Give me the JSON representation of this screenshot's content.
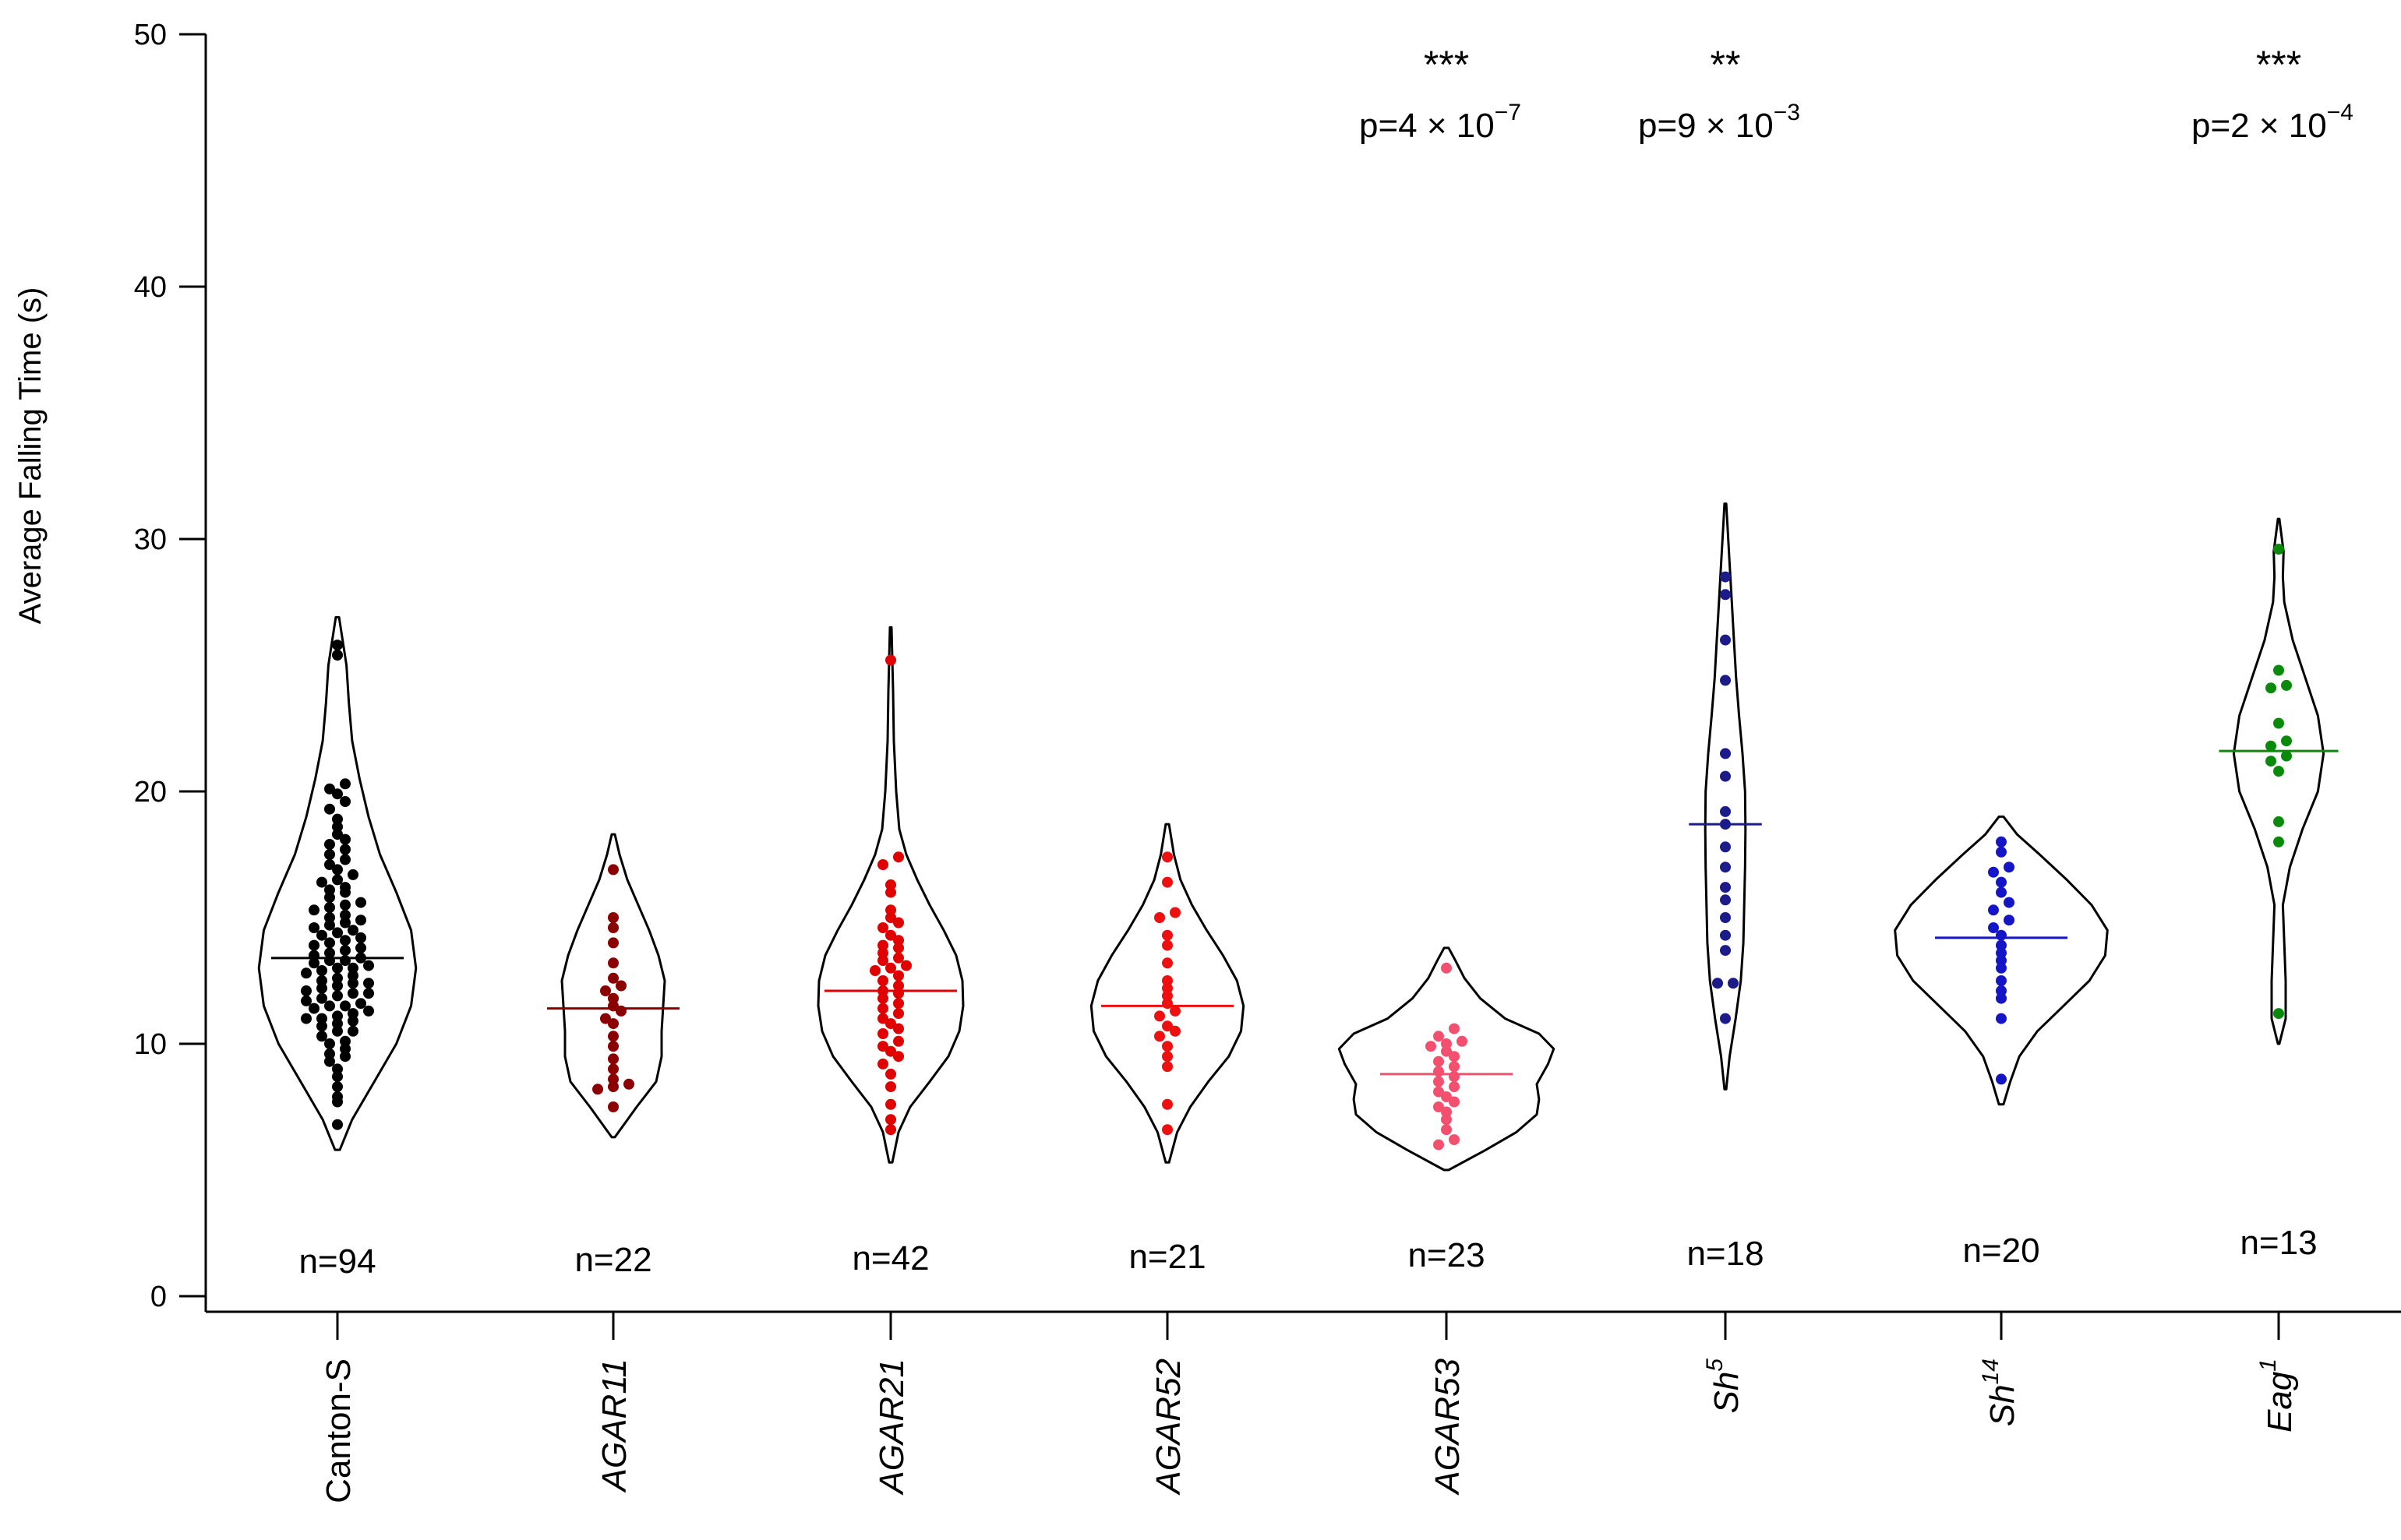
{
  "chart_data": {
    "type": "violin",
    "title": "",
    "ylabel": "Average Falling Time (s)",
    "xlabel": "",
    "ylim": [
      0,
      50
    ],
    "yticks": [
      "0",
      "10",
      "20",
      "30",
      "40",
      "50"
    ],
    "grid": false,
    "legend": "none",
    "groups": [
      {
        "name": "Canton-S",
        "italic": false,
        "sup": "",
        "color": "#000000",
        "n_label": "n=94",
        "median": 13.4,
        "range": [
          5.8,
          26.9
        ],
        "violin_profile": [
          [
            5.8,
            0.03
          ],
          [
            7,
            0.18
          ],
          [
            8.5,
            0.45
          ],
          [
            10,
            0.72
          ],
          [
            11.5,
            0.9
          ],
          [
            13,
            0.96
          ],
          [
            14.5,
            0.9
          ],
          [
            16,
            0.72
          ],
          [
            17.5,
            0.52
          ],
          [
            19,
            0.38
          ],
          [
            20.5,
            0.27
          ],
          [
            22,
            0.18
          ],
          [
            23.5,
            0.14
          ],
          [
            25,
            0.11
          ],
          [
            26.9,
            0.02
          ]
        ],
        "significance": "",
        "p_base": "",
        "p_exp": "",
        "values": [
          6.8,
          7.7,
          7.9,
          8.3,
          8.7,
          9.0,
          9.3,
          9.5,
          9.6,
          9.8,
          10.0,
          10.1,
          10.3,
          10.5,
          10.5,
          10.7,
          10.8,
          10.9,
          11.0,
          11.0,
          11.1,
          11.2,
          11.3,
          11.4,
          11.5,
          11.5,
          11.6,
          11.7,
          11.8,
          11.9,
          12.0,
          12.0,
          12.1,
          12.2,
          12.3,
          12.4,
          12.4,
          12.5,
          12.6,
          12.7,
          12.8,
          12.9,
          13.0,
          13.0,
          13.1,
          13.2,
          13.3,
          13.3,
          13.4,
          13.5,
          13.6,
          13.7,
          13.8,
          13.9,
          14.0,
          14.1,
          14.2,
          14.3,
          14.4,
          14.5,
          14.6,
          14.7,
          14.8,
          14.9,
          15.0,
          15.1,
          15.3,
          15.4,
          15.5,
          15.6,
          15.8,
          16.0,
          16.1,
          16.2,
          16.4,
          16.5,
          16.7,
          16.9,
          17.1,
          17.3,
          17.5,
          17.7,
          17.9,
          18.1,
          18.3,
          18.6,
          18.9,
          19.3,
          19.6,
          19.9,
          20.1,
          20.3,
          25.4,
          25.8
        ]
      },
      {
        "name": "AGAR11",
        "italic": true,
        "sup": "",
        "color": "#8b0000",
        "n_label": "n=22",
        "median": 11.4,
        "range": [
          6.3,
          18.3
        ],
        "violin_profile": [
          [
            6.3,
            0.02
          ],
          [
            7.5,
            0.3
          ],
          [
            8.5,
            0.55
          ],
          [
            9.5,
            0.62
          ],
          [
            10.5,
            0.62
          ],
          [
            11.5,
            0.64
          ],
          [
            12.5,
            0.66
          ],
          [
            13.5,
            0.58
          ],
          [
            14.5,
            0.46
          ],
          [
            15.5,
            0.32
          ],
          [
            16.5,
            0.18
          ],
          [
            17.5,
            0.08
          ],
          [
            18.3,
            0.02
          ]
        ],
        "significance": "",
        "p_base": "",
        "p_exp": "",
        "values": [
          7.5,
          8.2,
          8.3,
          8.4,
          8.6,
          9.0,
          9.4,
          9.9,
          10.3,
          10.8,
          11.0,
          11.3,
          11.5,
          11.8,
          12.1,
          12.3,
          12.6,
          13.2,
          14.0,
          14.6,
          15.0,
          16.9
        ]
      },
      {
        "name": "AGAR21",
        "italic": true,
        "sup": "",
        "color": "#e00000",
        "n_label": "n=42",
        "median": 12.1,
        "range": [
          5.3,
          26.5
        ],
        "violin_profile": [
          [
            5.3,
            0.02
          ],
          [
            6.5,
            0.1
          ],
          [
            7.5,
            0.25
          ],
          [
            8.5,
            0.5
          ],
          [
            9.5,
            0.74
          ],
          [
            10.5,
            0.88
          ],
          [
            11.5,
            0.93
          ],
          [
            12.5,
            0.92
          ],
          [
            13.5,
            0.84
          ],
          [
            14.5,
            0.68
          ],
          [
            15.5,
            0.5
          ],
          [
            16.5,
            0.34
          ],
          [
            17.5,
            0.2
          ],
          [
            18.5,
            0.11
          ],
          [
            20,
            0.07
          ],
          [
            22,
            0.04
          ],
          [
            24,
            0.03
          ],
          [
            26.5,
            0.01
          ]
        ],
        "significance": "",
        "p_base": "",
        "p_exp": "",
        "values": [
          6.6,
          7.0,
          7.6,
          8.3,
          8.8,
          9.2,
          9.5,
          9.7,
          9.9,
          10.1,
          10.4,
          10.6,
          10.8,
          11.0,
          11.2,
          11.4,
          11.6,
          11.8,
          12.0,
          12.1,
          12.3,
          12.5,
          12.7,
          12.9,
          13.0,
          13.1,
          13.3,
          13.4,
          13.6,
          13.8,
          13.9,
          14.1,
          14.3,
          14.6,
          14.8,
          15.0,
          15.3,
          16.0,
          16.3,
          17.1,
          17.4,
          25.2
        ]
      },
      {
        "name": "AGAR52",
        "italic": true,
        "sup": "",
        "color": "#ee1010",
        "n_label": "n=21",
        "median": 11.5,
        "range": [
          5.3,
          18.7
        ],
        "violin_profile": [
          [
            5.3,
            0.02
          ],
          [
            6.5,
            0.12
          ],
          [
            7.5,
            0.28
          ],
          [
            8.5,
            0.5
          ],
          [
            9.5,
            0.75
          ],
          [
            10.5,
            0.9
          ],
          [
            11.5,
            0.93
          ],
          [
            12.5,
            0.85
          ],
          [
            13.5,
            0.68
          ],
          [
            14.5,
            0.48
          ],
          [
            15.5,
            0.3
          ],
          [
            16.5,
            0.16
          ],
          [
            17.5,
            0.08
          ],
          [
            18.7,
            0.02
          ]
        ],
        "significance": "",
        "p_base": "",
        "p_exp": "",
        "values": [
          6.6,
          7.6,
          9.1,
          9.5,
          9.9,
          10.3,
          10.5,
          10.7,
          11.1,
          11.3,
          11.6,
          11.9,
          12.2,
          12.5,
          13.2,
          13.9,
          14.3,
          15.0,
          15.2,
          16.4,
          17.4
        ]
      },
      {
        "name": "AGAR53",
        "italic": true,
        "sup": "",
        "color": "#f2506e",
        "n_label": "n=23",
        "median": 8.8,
        "range": [
          5.0,
          13.8
        ],
        "violin_profile": [
          [
            5.0,
            0.02
          ],
          [
            5.8,
            0.35
          ],
          [
            6.5,
            0.62
          ],
          [
            7.2,
            0.8
          ],
          [
            7.8,
            0.82
          ],
          [
            8.4,
            0.8
          ],
          [
            9.2,
            0.9
          ],
          [
            9.8,
            0.95
          ],
          [
            10.4,
            0.82
          ],
          [
            11,
            0.52
          ],
          [
            11.8,
            0.3
          ],
          [
            12.6,
            0.16
          ],
          [
            13.3,
            0.08
          ],
          [
            13.8,
            0.02
          ]
        ],
        "significance": "***",
        "p_base": "p=4 × 10",
        "p_exp": "−7",
        "values": [
          6.0,
          6.2,
          6.6,
          7.0,
          7.3,
          7.5,
          7.7,
          7.9,
          8.1,
          8.3,
          8.5,
          8.7,
          8.9,
          9.1,
          9.3,
          9.5,
          9.7,
          9.9,
          10.0,
          10.1,
          10.3,
          10.6,
          13.0
        ]
      },
      {
        "name": "Sh",
        "italic": true,
        "sup": "5",
        "color": "#1b1b8a",
        "n_label": "n=18",
        "median": 18.7,
        "range": [
          8.2,
          31.4
        ],
        "violin_profile": [
          [
            8.2,
            0.02
          ],
          [
            9.5,
            0.1
          ],
          [
            11,
            0.24
          ],
          [
            12.5,
            0.36
          ],
          [
            14,
            0.42
          ],
          [
            15.5,
            0.44
          ],
          [
            17,
            0.46
          ],
          [
            18.5,
            0.47
          ],
          [
            20,
            0.46
          ],
          [
            21.5,
            0.4
          ],
          [
            23,
            0.32
          ],
          [
            24.5,
            0.25
          ],
          [
            26,
            0.2
          ],
          [
            27.5,
            0.15
          ],
          [
            29,
            0.1
          ],
          [
            30.5,
            0.05
          ],
          [
            31.4,
            0.02
          ]
        ],
        "significance": "**",
        "p_base": "p=9 × 10",
        "p_exp": "−3",
        "values": [
          11.0,
          12.4,
          12.4,
          13.7,
          14.3,
          15.0,
          15.7,
          16.2,
          17.0,
          17.8,
          18.7,
          19.2,
          20.6,
          21.5,
          24.4,
          26.0,
          27.8,
          28.5
        ]
      },
      {
        "name": "Sh",
        "italic": true,
        "sup": "14",
        "color": "#1515c8",
        "n_label": "n=20",
        "median": 14.2,
        "range": [
          7.6,
          19.0
        ],
        "violin_profile": [
          [
            7.6,
            0.02
          ],
          [
            8.5,
            0.08
          ],
          [
            9.5,
            0.16
          ],
          [
            10.5,
            0.32
          ],
          [
            11.5,
            0.55
          ],
          [
            12.5,
            0.78
          ],
          [
            13.5,
            0.92
          ],
          [
            14.5,
            0.94
          ],
          [
            15.5,
            0.8
          ],
          [
            16.5,
            0.58
          ],
          [
            17.5,
            0.34
          ],
          [
            18.3,
            0.14
          ],
          [
            19.0,
            0.02
          ]
        ],
        "significance": "",
        "p_base": "",
        "p_exp": "",
        "values": [
          8.6,
          11.0,
          11.8,
          12.1,
          12.5,
          13.0,
          13.3,
          13.6,
          13.9,
          14.3,
          14.6,
          14.9,
          15.3,
          15.6,
          16.0,
          16.4,
          16.8,
          17.0,
          17.6,
          18.0
        ]
      },
      {
        "name": "Eag",
        "italic": true,
        "sup": "1",
        "color": "#0a8a0a",
        "n_label": "n=13",
        "median": 21.6,
        "range": [
          10.0,
          30.8
        ],
        "violin_profile": [
          [
            10.0,
            0.01
          ],
          [
            11,
            0.1
          ],
          [
            12.5,
            0.1
          ],
          [
            14,
            0.08
          ],
          [
            15.5,
            0.06
          ],
          [
            17,
            0.16
          ],
          [
            18.5,
            0.34
          ],
          [
            20,
            0.56
          ],
          [
            21.5,
            0.64
          ],
          [
            23,
            0.56
          ],
          [
            24.5,
            0.38
          ],
          [
            26,
            0.2
          ],
          [
            27.5,
            0.08
          ],
          [
            28.5,
            0.06
          ],
          [
            29.5,
            0.07
          ],
          [
            30.8,
            0.01
          ]
        ],
        "significance": "***",
        "p_base": "p=2 × 10",
        "p_exp": "−4",
        "values": [
          11.2,
          18.0,
          18.8,
          20.8,
          21.2,
          21.4,
          21.8,
          22.0,
          22.7,
          24.1,
          24.2,
          24.8,
          29.6
        ]
      }
    ]
  }
}
